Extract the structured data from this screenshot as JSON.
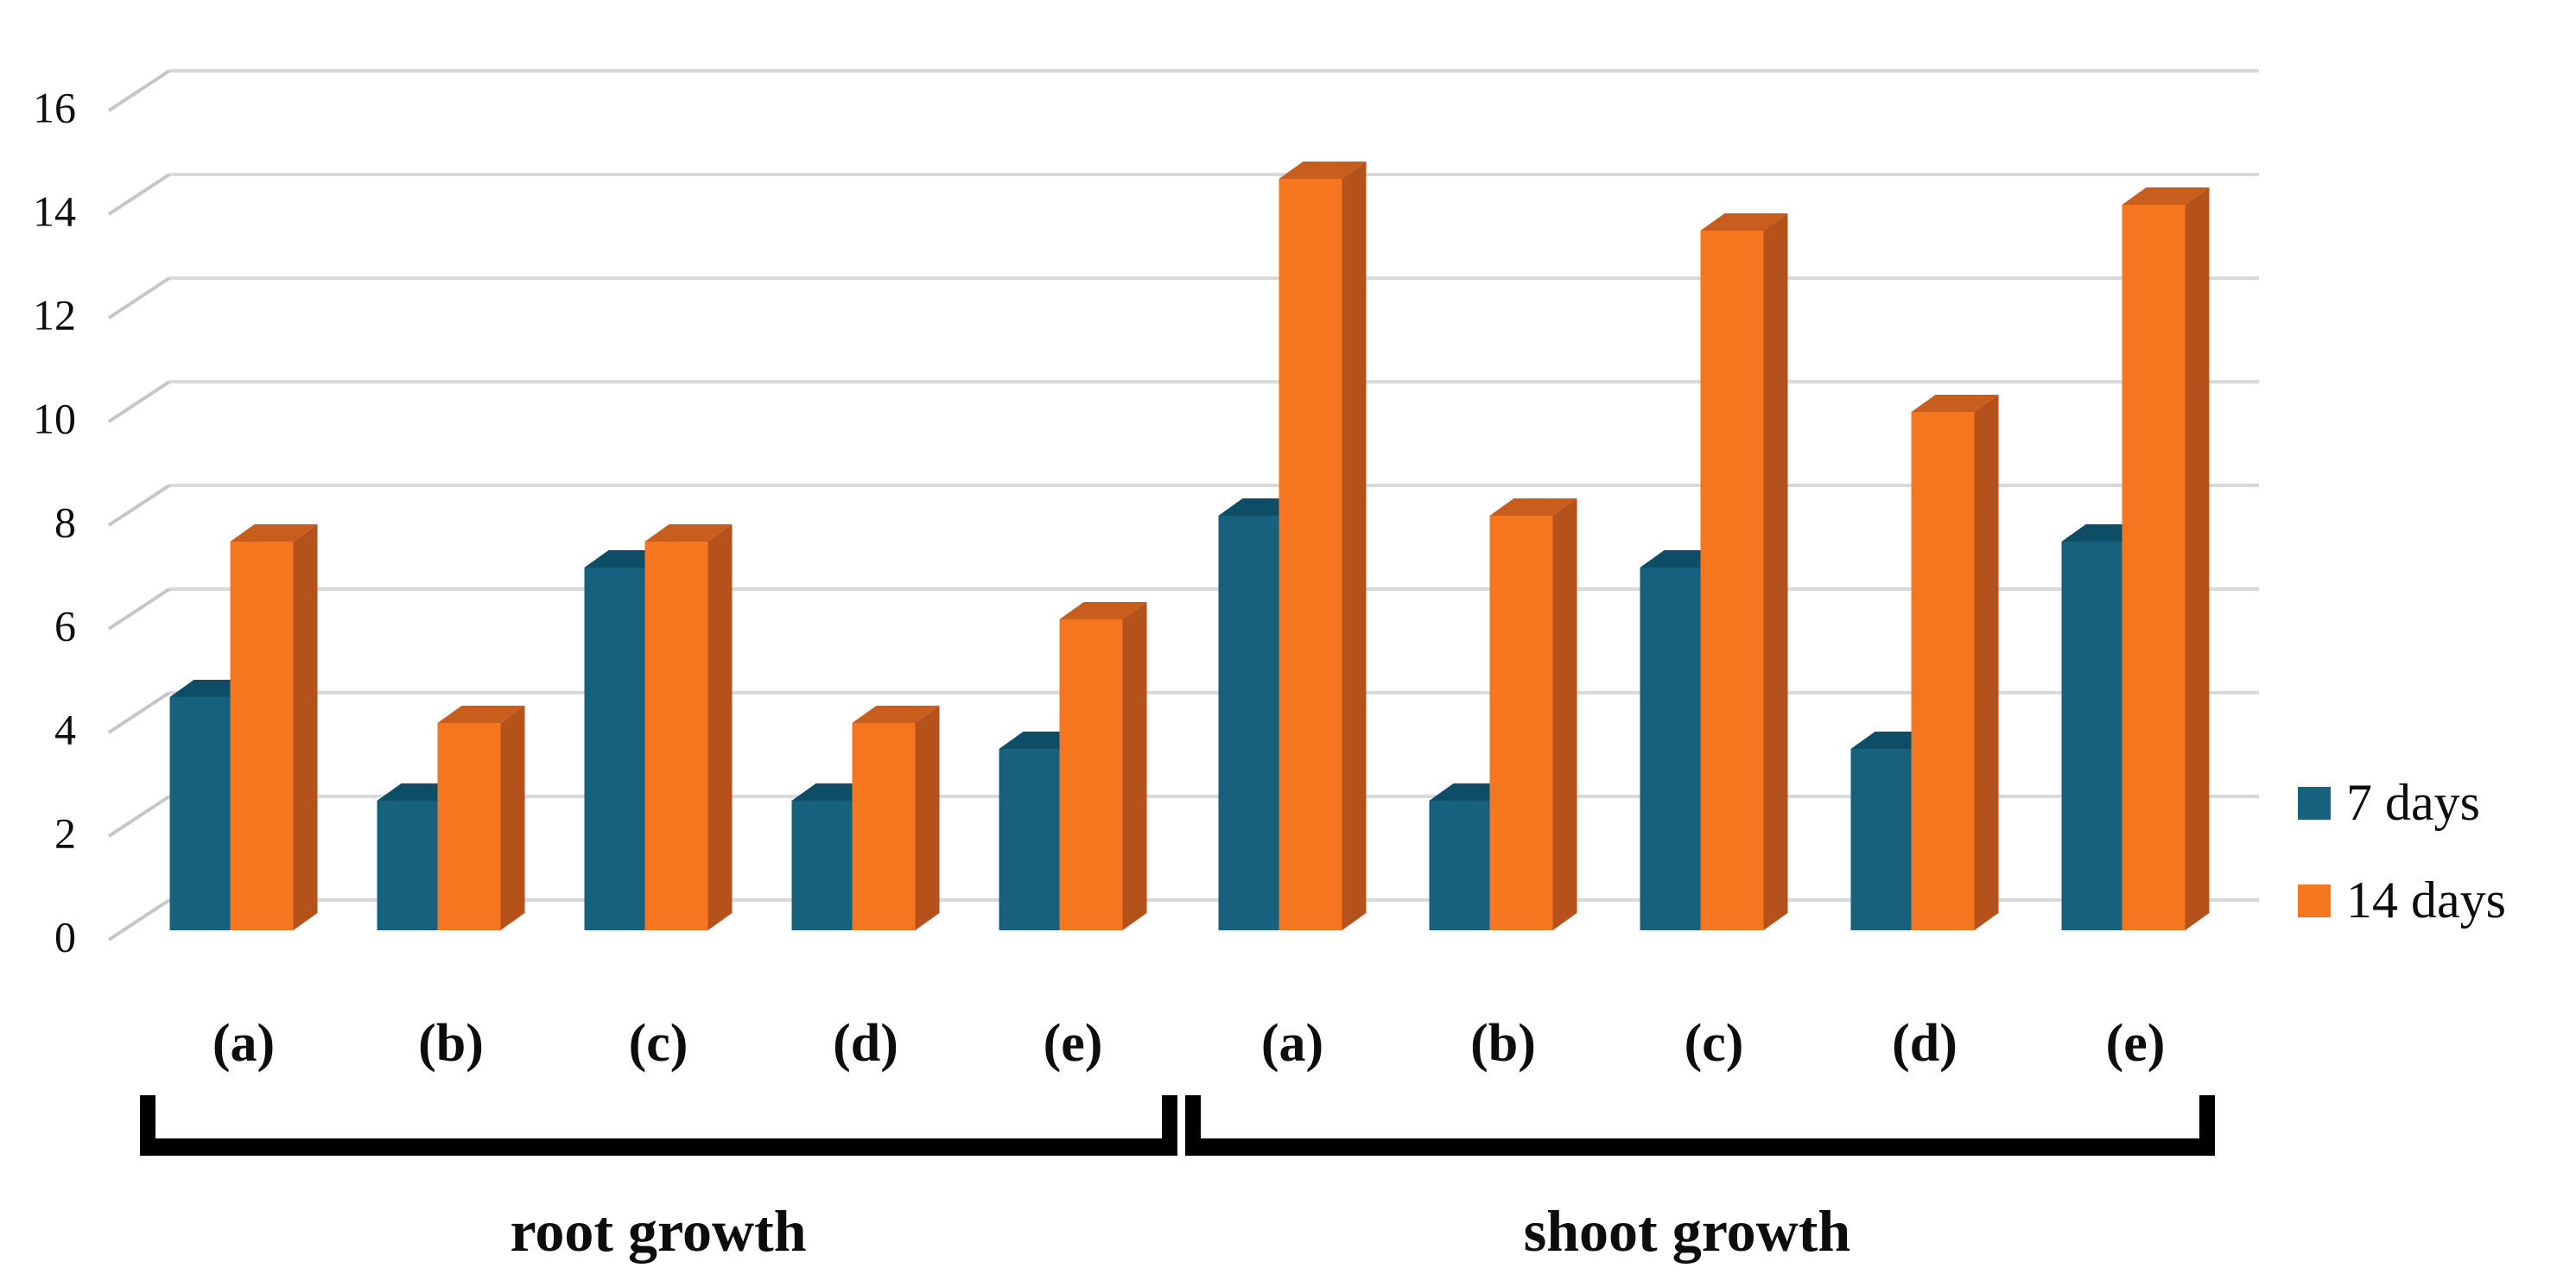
{
  "chart_data": {
    "type": "bar",
    "projection": "3d",
    "title": "",
    "xlabel": "",
    "ylabel": "",
    "ylim": [
      0,
      16
    ],
    "yticks": [
      0,
      2,
      4,
      6,
      8,
      10,
      12,
      14,
      16
    ],
    "grid": true,
    "legend_position": "right",
    "groups": [
      {
        "name": "root growth",
        "categories": [
          "(a)",
          "(b)",
          "(c)",
          "(d)",
          "(e)"
        ]
      },
      {
        "name": "shoot growth",
        "categories": [
          "(a)",
          "(b)",
          "(c)",
          "(d)",
          "(e)"
        ]
      }
    ],
    "categories": [
      "(a)",
      "(b)",
      "(c)",
      "(d)",
      "(e)",
      "(a)",
      "(b)",
      "(c)",
      "(d)",
      "(e)"
    ],
    "series": [
      {
        "name": "7 days",
        "colors": {
          "front": "#16617E",
          "side": "#0F4A61",
          "top": "#0D4E66"
        },
        "values": [
          4.5,
          2.5,
          7,
          2.5,
          3.5,
          8,
          2.5,
          7,
          3.5,
          7.5
        ]
      },
      {
        "name": "14 days",
        "colors": {
          "front": "#F5761E",
          "side": "#B5511B",
          "top": "#C85E1E"
        },
        "values": [
          7.5,
          4,
          7.5,
          4,
          6,
          14.5,
          8,
          13.5,
          10,
          14
        ]
      }
    ],
    "gridline_color": "#D9D9D9",
    "tick_color": "#C6C6C6",
    "text_color": "#0D0D0D",
    "bracket_color": "#000000"
  },
  "legend": {
    "items": [
      {
        "label": "7 days"
      },
      {
        "label": "14 days"
      }
    ]
  }
}
